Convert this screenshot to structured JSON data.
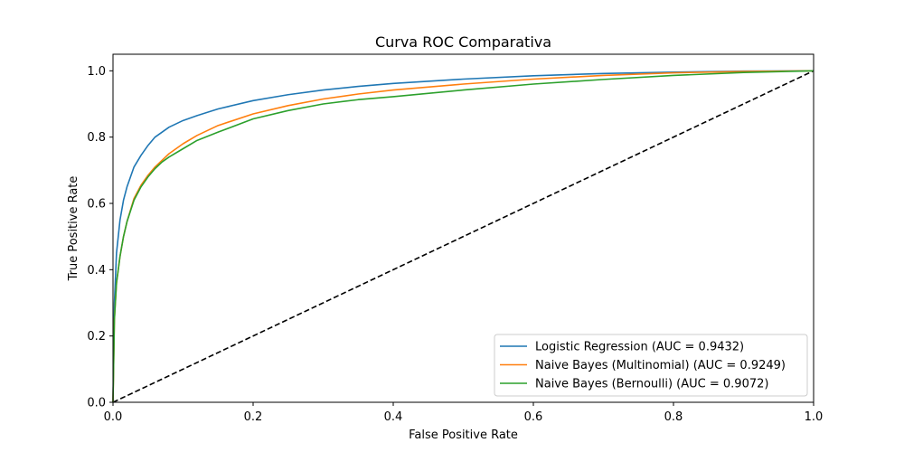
{
  "chart_data": {
    "type": "line",
    "title": "Curva ROC Comparativa",
    "xlabel": "False Positive Rate",
    "ylabel": "True Positive Rate",
    "xlim": [
      0.0,
      1.0
    ],
    "ylim": [
      0.0,
      1.05
    ],
    "xticks": [
      "0.0",
      "0.2",
      "0.4",
      "0.6",
      "0.8",
      "1.0"
    ],
    "yticks": [
      "0.0",
      "0.2",
      "0.4",
      "0.6",
      "0.8",
      "1.0"
    ],
    "grid": false,
    "legend_position": "lower-right",
    "series": [
      {
        "name": "Logistic Regression (AUC = 0.9432)",
        "color": "#1f77b4",
        "x": [
          0.0,
          0.002,
          0.005,
          0.01,
          0.015,
          0.02,
          0.03,
          0.04,
          0.05,
          0.06,
          0.07,
          0.08,
          0.1,
          0.12,
          0.15,
          0.2,
          0.25,
          0.3,
          0.35,
          0.4,
          0.5,
          0.6,
          0.7,
          0.8,
          0.9,
          1.0
        ],
        "y": [
          0.0,
          0.3,
          0.45,
          0.55,
          0.61,
          0.65,
          0.71,
          0.745,
          0.775,
          0.8,
          0.815,
          0.83,
          0.85,
          0.865,
          0.885,
          0.91,
          0.928,
          0.942,
          0.953,
          0.962,
          0.975,
          0.985,
          0.992,
          0.996,
          0.999,
          1.0
        ]
      },
      {
        "name": "Naive Bayes (Multinomial) (AUC = 0.9249)",
        "color": "#ff7f0e",
        "x": [
          0.0,
          0.002,
          0.005,
          0.01,
          0.015,
          0.02,
          0.03,
          0.04,
          0.05,
          0.06,
          0.07,
          0.08,
          0.1,
          0.12,
          0.15,
          0.2,
          0.25,
          0.3,
          0.35,
          0.4,
          0.5,
          0.6,
          0.7,
          0.8,
          0.9,
          1.0
        ],
        "y": [
          0.0,
          0.25,
          0.36,
          0.44,
          0.5,
          0.545,
          0.615,
          0.655,
          0.685,
          0.71,
          0.73,
          0.75,
          0.78,
          0.805,
          0.835,
          0.87,
          0.895,
          0.915,
          0.93,
          0.942,
          0.96,
          0.975,
          0.986,
          0.994,
          0.998,
          1.0
        ]
      },
      {
        "name": "Naive Bayes (Bernoulli) (AUC = 0.9072)",
        "color": "#2ca02c",
        "x": [
          0.0,
          0.002,
          0.005,
          0.01,
          0.015,
          0.02,
          0.03,
          0.04,
          0.05,
          0.06,
          0.07,
          0.08,
          0.1,
          0.12,
          0.15,
          0.2,
          0.25,
          0.3,
          0.35,
          0.4,
          0.5,
          0.6,
          0.7,
          0.8,
          0.9,
          1.0
        ],
        "y": [
          0.0,
          0.25,
          0.36,
          0.44,
          0.5,
          0.545,
          0.61,
          0.65,
          0.68,
          0.705,
          0.725,
          0.74,
          0.765,
          0.79,
          0.815,
          0.855,
          0.88,
          0.9,
          0.913,
          0.922,
          0.942,
          0.96,
          0.974,
          0.986,
          0.995,
          1.0
        ]
      }
    ],
    "reference_line": {
      "style": "dashed",
      "color": "#000000",
      "x": [
        0.0,
        1.0
      ],
      "y": [
        0.0,
        1.0
      ]
    }
  }
}
